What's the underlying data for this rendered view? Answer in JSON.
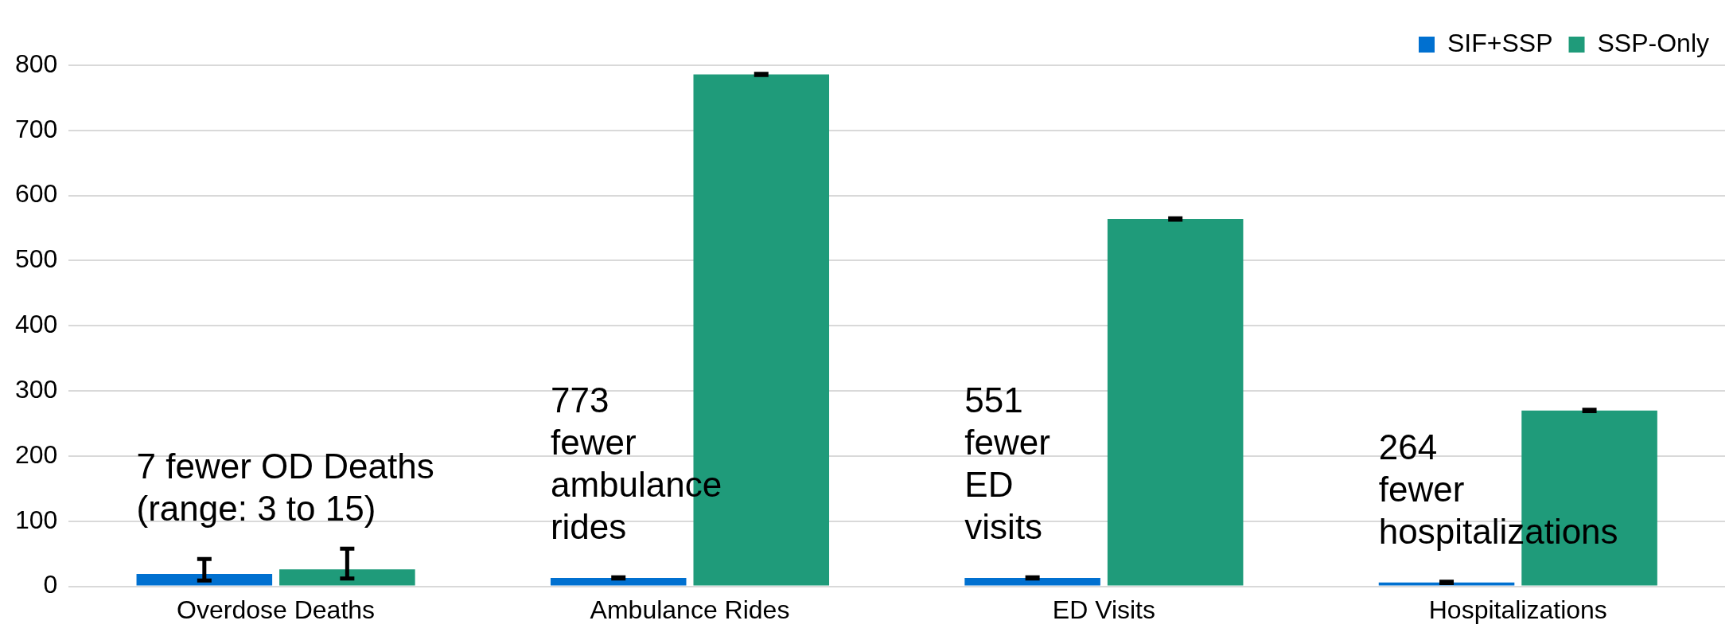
{
  "chart_data": {
    "type": "bar",
    "categories": [
      "Overdose Deaths",
      "Ambulance Rides",
      "ED Visits",
      "Hospitalizations"
    ],
    "series": [
      {
        "name": "SIF+SSP",
        "color": "#0070d0",
        "values": [
          19,
          13,
          13,
          6
        ],
        "errors": [
          [
            9,
            42
          ],
          [
            12,
            14
          ],
          [
            12,
            14
          ],
          [
            5,
            7
          ]
        ]
      },
      {
        "name": "SSP-Only",
        "color": "#1f9b7a",
        "values": [
          26,
          786,
          564,
          270
        ],
        "errors": [
          [
            12,
            58
          ],
          [
            785,
            787
          ],
          [
            563,
            565
          ],
          [
            269,
            271
          ]
        ]
      }
    ],
    "ylim": [
      0,
      800
    ],
    "yticks": [
      0,
      100,
      200,
      300,
      400,
      500,
      600,
      700,
      800
    ],
    "grid": "y",
    "legend": "top right",
    "annotations": [
      "7 fewer OD Deaths\n(range: 3 to 15)",
      "773\nfewer\nambulance\nrides",
      "551\nfewer\nED\nvisits",
      "264\nfewer\nhospitalizations"
    ]
  }
}
